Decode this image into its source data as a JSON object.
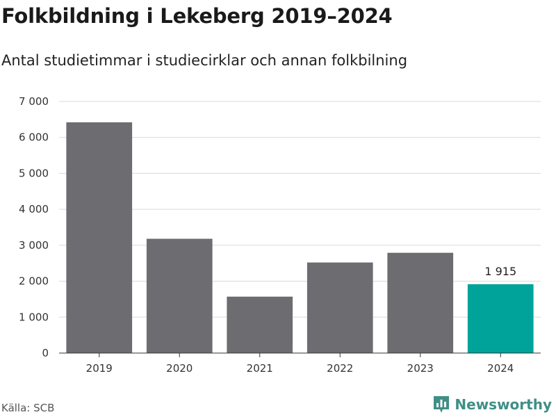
{
  "title": "Folkbildning i Lekeberg 2019–2024",
  "subtitle": "Antal studietimmar i studiecirklar och annan folkbilning",
  "source": "Källa: SCB",
  "brand": {
    "name": "Newsworthy",
    "logo_icon": "newsworthy-bar-logo-icon",
    "color": "#3f8f86"
  },
  "colors": {
    "bar": "#6d6c71",
    "highlight": "#00a39a",
    "grid": "#d9d9d9"
  },
  "chart_data": {
    "type": "bar",
    "categories": [
      "2019",
      "2020",
      "2021",
      "2022",
      "2023",
      "2024"
    ],
    "values": [
      6420,
      3180,
      1570,
      2520,
      2790,
      1915
    ],
    "highlight_index": 5,
    "data_labels": [
      {
        "index": 5,
        "text": "1 915"
      }
    ],
    "title": "Folkbildning i Lekeberg 2019–2024",
    "xlabel": "",
    "ylabel": "",
    "ylim": [
      0,
      7000
    ],
    "yticks": [
      0,
      1000,
      2000,
      3000,
      4000,
      5000,
      6000,
      7000
    ],
    "ytick_labels": [
      "0",
      "1 000",
      "2 000",
      "3 000",
      "4 000",
      "5 000",
      "6 000",
      "7 000"
    ],
    "grid": true
  }
}
